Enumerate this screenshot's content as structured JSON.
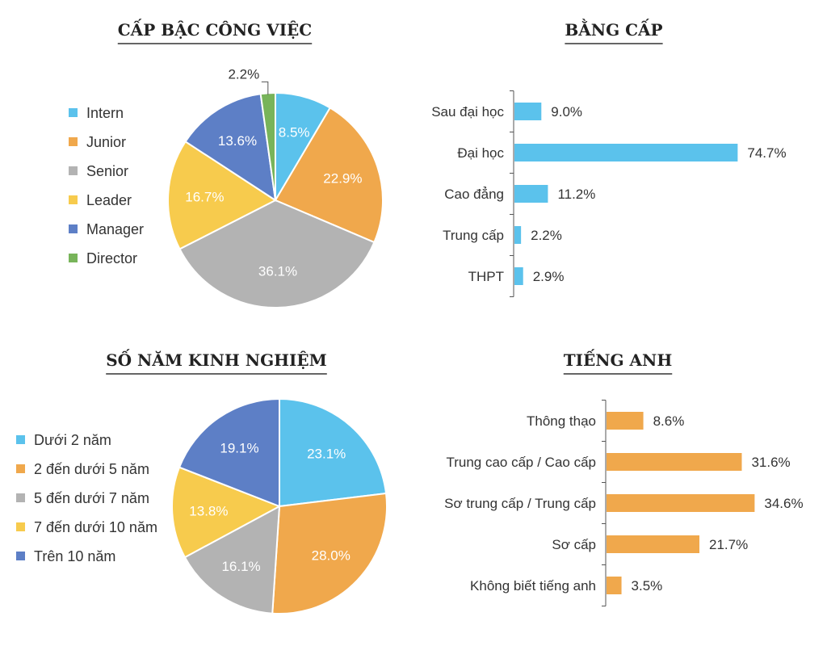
{
  "chart_data": [
    {
      "type": "pie",
      "title": "CẤP BẬC CÔNG VIỆC",
      "legend_position": "left",
      "categories": [
        "Intern",
        "Junior",
        "Senior",
        "Leader",
        "Manager",
        "Director"
      ],
      "values": [
        8.5,
        22.9,
        36.1,
        16.7,
        13.6,
        2.2
      ],
      "labels": [
        "8.5%",
        "22.9%",
        "36.1%",
        "16.7%",
        "13.6%",
        "2.2%"
      ],
      "colors": [
        "#5bc2ec",
        "#f0a84c",
        "#b3b3b3",
        "#f7cb4d",
        "#5d7fc6",
        "#78b45a"
      ]
    },
    {
      "type": "bar",
      "orientation": "horizontal",
      "title": "BẰNG CẤP",
      "categories": [
        "Sau đại học",
        "Đại học",
        "Cao đẳng",
        "Trung cấp",
        "THPT"
      ],
      "values": [
        9.0,
        74.7,
        11.2,
        2.2,
        2.9
      ],
      "labels": [
        "9.0%",
        "74.7%",
        "11.2%",
        "2.2%",
        "2.9%"
      ],
      "color": "#5bc2ec"
    },
    {
      "type": "pie",
      "title": "SỐ NĂM KINH NGHIỆM",
      "legend_position": "left",
      "categories": [
        "Dưới 2 năm",
        "2 đến dưới 5 năm",
        "5 đến dưới 7 năm",
        "7 đến dưới 10 năm",
        "Trên 10 năm"
      ],
      "values": [
        23.1,
        28.0,
        16.1,
        13.8,
        19.1
      ],
      "labels": [
        "23.1%",
        "28.0%",
        "16.1%",
        "13.8%",
        "19.1%"
      ],
      "colors": [
        "#5bc2ec",
        "#f0a84c",
        "#b3b3b3",
        "#f7cb4d",
        "#5d7fc6"
      ]
    },
    {
      "type": "bar",
      "orientation": "horizontal",
      "title": "TIẾNG ANH",
      "categories": [
        "Thông thạo",
        "Trung cao cấp / Cao cấp",
        "Sơ trung cấp / Trung cấp",
        "Sơ cấp",
        "Không biết tiếng anh"
      ],
      "values": [
        8.6,
        31.6,
        34.6,
        21.7,
        3.5
      ],
      "labels": [
        "8.6%",
        "31.6%",
        "34.6%",
        "21.7%",
        "3.5%"
      ],
      "color": "#f0a84c"
    }
  ]
}
